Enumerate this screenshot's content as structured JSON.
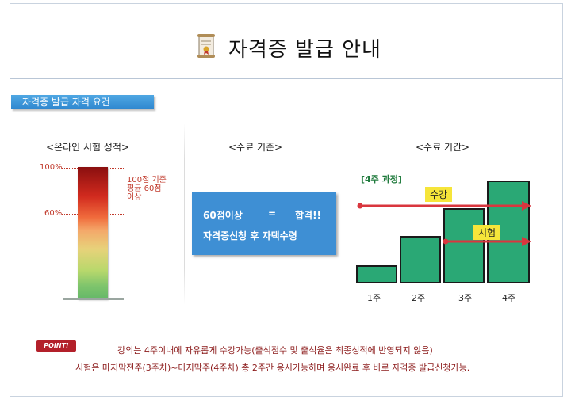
{
  "header": {
    "title": "자격증 발급 안내",
    "icon": "certificate-icon"
  },
  "section": {
    "label": "자격증 발급 자격 요건"
  },
  "score_panel": {
    "heading": "<온라인 시험 성적>",
    "top_pct": "100%",
    "mid_pct": "60%",
    "note": "100점 기준\n평균 60점\n이상",
    "pass_fraction": 0.6
  },
  "criteria_panel": {
    "heading": "<수료 기준>",
    "line1_left": "60점이상",
    "line1_eq": "=",
    "line1_right": "합격!!",
    "line2": "자격증신청 후 자택수령"
  },
  "period_panel": {
    "heading": "<수료 기간>",
    "course_tag": "[4주 과정]",
    "attend_tag": "수강",
    "exam_tag": "시험",
    "weeks": [
      {
        "label": "1주",
        "level": 1
      },
      {
        "label": "2주",
        "level": 3
      },
      {
        "label": "3주",
        "level": 5
      },
      {
        "label": "4주",
        "level": 7
      }
    ]
  },
  "notice": {
    "badge": "POINT!",
    "line1": "강의는 4주이내에 자유롭게 수강가능(출석점수 및 출석율은 최종성적에 반영되지 않음)",
    "line2": "시험은 마지막전주(3주차)~마지막주(4주차) 총 2주간 응시가능하며 응시완료 후 바로 자격증 발급신청가능."
  },
  "colors": {
    "accent_blue": "#3e8fd4",
    "bar_green": "#2aa875",
    "arrow_red": "#d9363e",
    "tag_yellow": "#f6e53a"
  }
}
